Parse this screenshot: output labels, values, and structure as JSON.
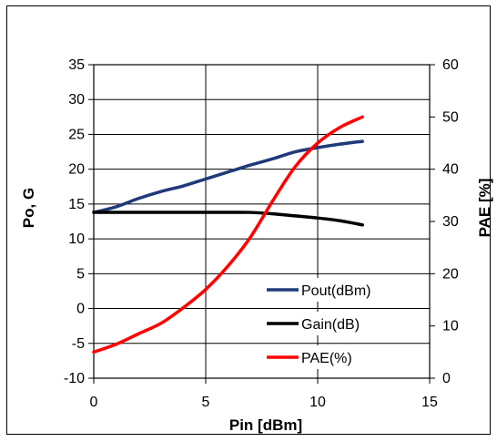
{
  "chart_data": {
    "type": "line",
    "xlabel": "Pin [dBm]",
    "ylabel_left": "Po, G",
    "ylabel_right": "PAE [%]",
    "xlim": [
      0,
      15
    ],
    "ylim_left": [
      -10,
      35
    ],
    "ylim_right": [
      0,
      60
    ],
    "x_ticks": [
      "0",
      "5",
      "10",
      "15"
    ],
    "y_left_ticks": [
      "-10",
      "-5",
      "0",
      "5",
      "10",
      "15",
      "20",
      "25",
      "30",
      "35"
    ],
    "y_right_ticks": [
      "0",
      "10",
      "20",
      "30",
      "40",
      "50",
      "60"
    ],
    "grid": true,
    "legend_position": "inside-lower-right",
    "series": [
      {
        "name": "Pout(dBm)",
        "axis": "left",
        "color": "#1f3a7a",
        "x": [
          0,
          1,
          2,
          3,
          4,
          5,
          6,
          7,
          8,
          9,
          10,
          11,
          12
        ],
        "y": [
          13.8,
          14.6,
          15.8,
          16.8,
          17.6,
          18.6,
          19.6,
          20.6,
          21.5,
          22.5,
          23.1,
          23.6,
          24.0
        ]
      },
      {
        "name": "Gain(dB)",
        "axis": "left",
        "color": "#000000",
        "x": [
          0,
          1,
          2,
          3,
          4,
          5,
          6,
          7,
          8,
          9,
          10,
          11,
          12
        ],
        "y": [
          13.8,
          13.8,
          13.8,
          13.8,
          13.8,
          13.8,
          13.8,
          13.8,
          13.6,
          13.3,
          13.0,
          12.6,
          12.0
        ]
      },
      {
        "name": "PAE(%)",
        "axis": "right",
        "color": "#ff0000",
        "x": [
          0,
          1,
          2,
          3,
          4,
          5,
          6,
          7,
          8,
          9,
          10,
          11,
          12
        ],
        "y": [
          5,
          6.5,
          8.5,
          10.5,
          13.5,
          17,
          21.5,
          27,
          34,
          40.5,
          45,
          48,
          50
        ]
      }
    ]
  }
}
